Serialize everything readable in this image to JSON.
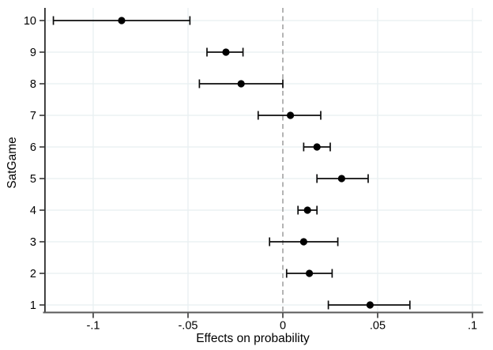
{
  "chart_data": {
    "type": "scatter",
    "subtype": "coefficient-plot-with-error-bars",
    "title": "",
    "xlabel": "Effects on probability",
    "ylabel": "SatGame",
    "legend": null,
    "grid": true,
    "xlim": [
      -0.1254,
      0.105
    ],
    "ylim_groups": [
      1,
      10
    ],
    "zero_line": {
      "value": 0,
      "style": "dashed"
    },
    "xticks": [
      {
        "value": -0.1,
        "label": "-.1"
      },
      {
        "value": -0.05,
        "label": "-.05"
      },
      {
        "value": 0,
        "label": "0"
      },
      {
        "value": 0.05,
        "label": ".05"
      },
      {
        "value": 0.1,
        "label": ".1"
      }
    ],
    "points": [
      {
        "group": 1,
        "label": "1",
        "estimate": 0.046,
        "ci_low": 0.024,
        "ci_high": 0.067
      },
      {
        "group": 2,
        "label": "2",
        "estimate": 0.014,
        "ci_low": 0.002,
        "ci_high": 0.026
      },
      {
        "group": 3,
        "label": "3",
        "estimate": 0.011,
        "ci_low": -0.007,
        "ci_high": 0.029
      },
      {
        "group": 4,
        "label": "4",
        "estimate": 0.013,
        "ci_low": 0.008,
        "ci_high": 0.018
      },
      {
        "group": 5,
        "label": "5",
        "estimate": 0.031,
        "ci_low": 0.018,
        "ci_high": 0.045
      },
      {
        "group": 6,
        "label": "6",
        "estimate": 0.018,
        "ci_low": 0.011,
        "ci_high": 0.025
      },
      {
        "group": 7,
        "label": "7",
        "estimate": 0.004,
        "ci_low": -0.013,
        "ci_high": 0.02
      },
      {
        "group": 8,
        "label": "8",
        "estimate": -0.022,
        "ci_low": -0.044,
        "ci_high": 0.0
      },
      {
        "group": 9,
        "label": "9",
        "estimate": -0.03,
        "ci_low": -0.04,
        "ci_high": -0.021
      },
      {
        "group": 10,
        "label": "10",
        "estimate": -0.085,
        "ci_low": -0.121,
        "ci_high": -0.049
      }
    ],
    "colors": {
      "background": "#ffffff",
      "gridline": "#e8eff1",
      "zero_line": "#a8a8a8",
      "left_axis": "#2e2e2e",
      "bottom_axis": "#5a5a5a",
      "tick": "#1a1a1a",
      "marker": "#000000",
      "error_bar": "#0d0d0d",
      "text": "#000000"
    }
  }
}
